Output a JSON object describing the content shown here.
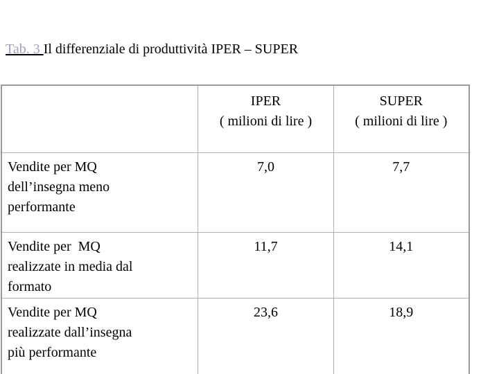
{
  "caption": {
    "label": "Tab. 3 ",
    "title": "Il differenziale di produttività IPER – SUPER"
  },
  "table": {
    "columns": [
      {
        "name": "IPER",
        "unit": "( milioni di lire )"
      },
      {
        "name": "SUPER",
        "unit": "( milioni di lire )"
      }
    ],
    "rows": [
      {
        "label_lines": [
          "Vendite per MQ",
          "dell’insegna meno",
          "performante"
        ],
        "iper": "7,0",
        "super": "7,7"
      },
      {
        "label_lines": [
          "Vendite per  MQ",
          "realizzate in media dal",
          "formato"
        ],
        "iper": "11,7",
        "super": "14,1"
      },
      {
        "label_lines": [
          "Vendite per MQ",
          "realizzate dall’insegna",
          "più performante"
        ],
        "iper": "23,6",
        "super": "18,9"
      }
    ]
  }
}
